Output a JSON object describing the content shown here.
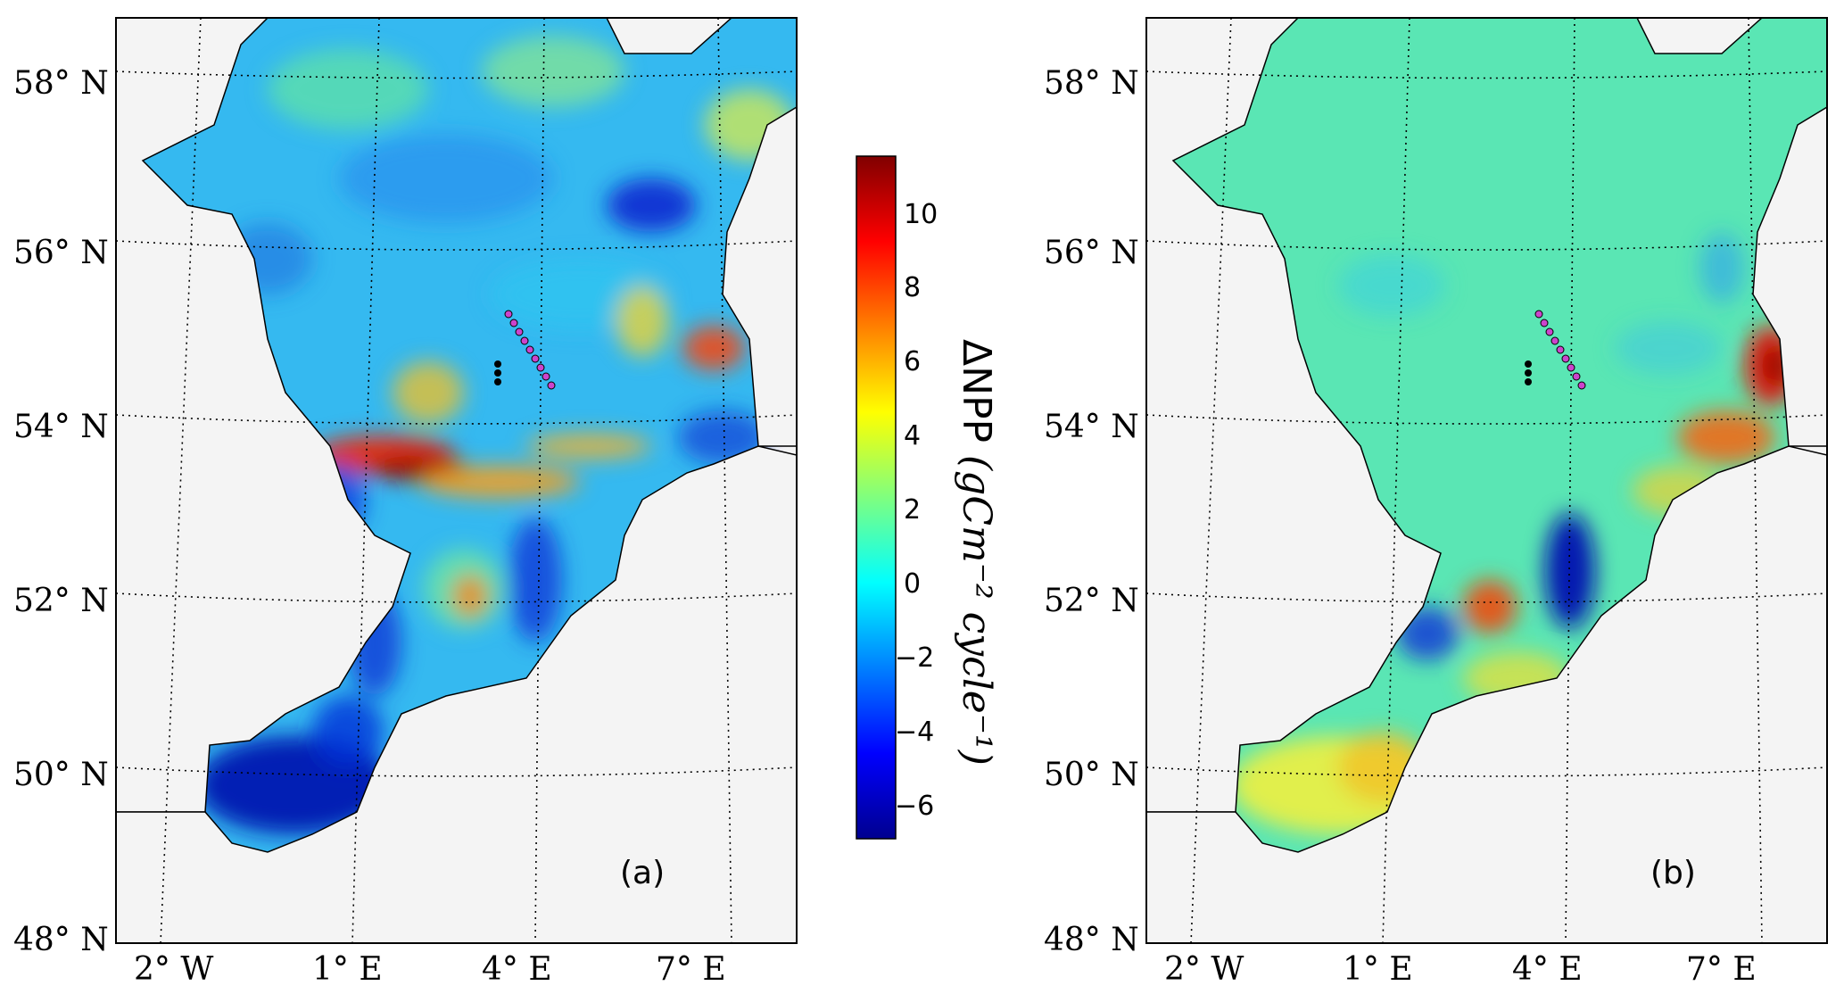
{
  "panels": [
    {
      "id": "a",
      "label": "(a)",
      "lat_labels": [
        "58° N",
        "56° N",
        "54° N",
        "52° N",
        "50° N",
        "48° N"
      ],
      "lon_labels": [
        "2° W",
        "1° E",
        "4° E",
        "7° E"
      ]
    },
    {
      "id": "b",
      "label": "(b)",
      "lat_labels": [
        "58° N",
        "56° N",
        "54° N",
        "52° N",
        "50° N",
        "48° N"
      ],
      "lon_labels": [
        "2° W",
        "1° E",
        "4° E",
        "7° E"
      ]
    }
  ],
  "colorbar": {
    "ticks": [
      "10",
      "8",
      "6",
      "4",
      "2",
      "0",
      "−2",
      "−4",
      "−6"
    ],
    "label": "ΔNPP",
    "units": "(gCm⁻² cycle⁻¹)",
    "range": [
      -7,
      11.5
    ],
    "colormap": "jet"
  },
  "colors": {
    "land": "#f4f4f4",
    "coast": "#000000",
    "grid": "#000000",
    "marker_black": "#000000",
    "marker_purple": "#cc44cc"
  }
}
